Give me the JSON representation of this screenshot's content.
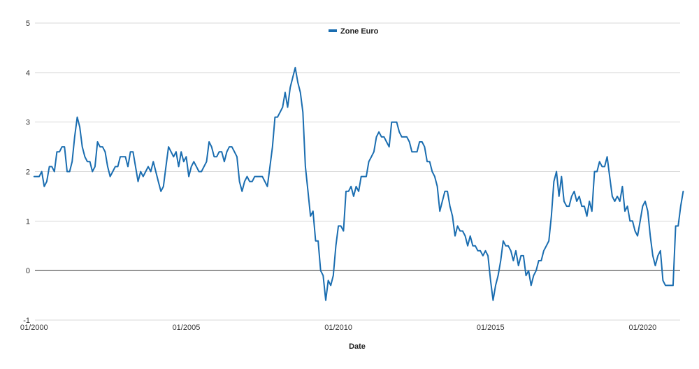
{
  "chart_data": {
    "type": "line",
    "xlabel": "Date",
    "ylabel": "",
    "ylim": [
      -1,
      5
    ],
    "y_ticks": [
      "-1",
      "0",
      "1",
      "2",
      "3",
      "4",
      "5"
    ],
    "x_ticks": [
      {
        "label": "01/2000",
        "year": 2000
      },
      {
        "label": "01/2005",
        "year": 2005
      },
      {
        "label": "01/2010",
        "year": 2010
      },
      {
        "label": "01/2015",
        "year": 2015
      },
      {
        "label": "01/2020",
        "year": 2020
      }
    ],
    "grid": true,
    "legend_position": "top-center",
    "series": [
      {
        "name": "Zone Euro",
        "color": "#1a6db0",
        "points": [
          [
            "01/2000",
            1.9
          ],
          [
            "03/2000",
            1.9
          ],
          [
            "04/2000",
            2.0
          ],
          [
            "05/2000",
            1.7
          ],
          [
            "06/2000",
            1.8
          ],
          [
            "07/2000",
            2.1
          ],
          [
            "08/2000",
            2.1
          ],
          [
            "09/2000",
            2.0
          ],
          [
            "10/2000",
            2.4
          ],
          [
            "11/2000",
            2.4
          ],
          [
            "12/2000",
            2.5
          ],
          [
            "01/2001",
            2.5
          ],
          [
            "02/2001",
            2.0
          ],
          [
            "03/2001",
            2.0
          ],
          [
            "04/2001",
            2.2
          ],
          [
            "05/2001",
            2.7
          ],
          [
            "06/2001",
            3.1
          ],
          [
            "07/2001",
            2.9
          ],
          [
            "08/2001",
            2.5
          ],
          [
            "09/2001",
            2.3
          ],
          [
            "10/2001",
            2.2
          ],
          [
            "11/2001",
            2.2
          ],
          [
            "12/2001",
            2.0
          ],
          [
            "01/2002",
            2.1
          ],
          [
            "02/2002",
            2.6
          ],
          [
            "03/2002",
            2.5
          ],
          [
            "04/2002",
            2.5
          ],
          [
            "05/2002",
            2.4
          ],
          [
            "06/2002",
            2.1
          ],
          [
            "07/2002",
            1.9
          ],
          [
            "08/2002",
            2.0
          ],
          [
            "09/2002",
            2.1
          ],
          [
            "10/2002",
            2.1
          ],
          [
            "11/2002",
            2.3
          ],
          [
            "12/2002",
            2.3
          ],
          [
            "01/2003",
            2.3
          ],
          [
            "02/2003",
            2.1
          ],
          [
            "03/2003",
            2.4
          ],
          [
            "04/2003",
            2.4
          ],
          [
            "05/2003",
            2.1
          ],
          [
            "06/2003",
            1.8
          ],
          [
            "07/2003",
            2.0
          ],
          [
            "08/2003",
            1.9
          ],
          [
            "09/2003",
            2.0
          ],
          [
            "10/2003",
            2.1
          ],
          [
            "11/2003",
            2.0
          ],
          [
            "12/2003",
            2.2
          ],
          [
            "01/2004",
            2.0
          ],
          [
            "02/2004",
            1.8
          ],
          [
            "03/2004",
            1.6
          ],
          [
            "04/2004",
            1.7
          ],
          [
            "05/2004",
            2.1
          ],
          [
            "06/2004",
            2.5
          ],
          [
            "07/2004",
            2.4
          ],
          [
            "08/2004",
            2.3
          ],
          [
            "09/2004",
            2.4
          ],
          [
            "10/2004",
            2.1
          ],
          [
            "11/2004",
            2.4
          ],
          [
            "12/2004",
            2.2
          ],
          [
            "01/2005",
            2.3
          ],
          [
            "02/2005",
            1.9
          ],
          [
            "03/2005",
            2.1
          ],
          [
            "04/2005",
            2.2
          ],
          [
            "05/2005",
            2.1
          ],
          [
            "06/2005",
            2.0
          ],
          [
            "07/2005",
            2.0
          ],
          [
            "08/2005",
            2.1
          ],
          [
            "09/2005",
            2.2
          ],
          [
            "10/2005",
            2.6
          ],
          [
            "11/2005",
            2.5
          ],
          [
            "12/2005",
            2.3
          ],
          [
            "01/2006",
            2.3
          ],
          [
            "02/2006",
            2.4
          ],
          [
            "03/2006",
            2.4
          ],
          [
            "04/2006",
            2.2
          ],
          [
            "05/2006",
            2.4
          ],
          [
            "06/2006",
            2.5
          ],
          [
            "07/2006",
            2.5
          ],
          [
            "08/2006",
            2.4
          ],
          [
            "09/2006",
            2.3
          ],
          [
            "10/2006",
            1.8
          ],
          [
            "11/2006",
            1.6
          ],
          [
            "12/2006",
            1.8
          ],
          [
            "01/2007",
            1.9
          ],
          [
            "02/2007",
            1.8
          ],
          [
            "03/2007",
            1.8
          ],
          [
            "04/2007",
            1.9
          ],
          [
            "05/2007",
            1.9
          ],
          [
            "06/2007",
            1.9
          ],
          [
            "07/2007",
            1.9
          ],
          [
            "08/2007",
            1.8
          ],
          [
            "09/2007",
            1.7
          ],
          [
            "10/2007",
            2.1
          ],
          [
            "11/2007",
            2.5
          ],
          [
            "12/2007",
            3.1
          ],
          [
            "01/2008",
            3.1
          ],
          [
            "02/2008",
            3.2
          ],
          [
            "03/2008",
            3.3
          ],
          [
            "04/2008",
            3.6
          ],
          [
            "05/2008",
            3.3
          ],
          [
            "06/2008",
            3.7
          ],
          [
            "07/2008",
            3.9
          ],
          [
            "08/2008",
            4.1
          ],
          [
            "09/2008",
            3.8
          ],
          [
            "10/2008",
            3.6
          ],
          [
            "11/2008",
            3.2
          ],
          [
            "12/2008",
            2.1
          ],
          [
            "01/2009",
            1.6
          ],
          [
            "02/2009",
            1.1
          ],
          [
            "03/2009",
            1.2
          ],
          [
            "04/2009",
            0.6
          ],
          [
            "05/2009",
            0.6
          ],
          [
            "06/2009",
            0.0
          ],
          [
            "07/2009",
            -0.1
          ],
          [
            "08/2009",
            -0.6
          ],
          [
            "09/2009",
            -0.2
          ],
          [
            "10/2009",
            -0.3
          ],
          [
            "11/2009",
            -0.1
          ],
          [
            "12/2009",
            0.5
          ],
          [
            "01/2010",
            0.9
          ],
          [
            "02/2010",
            0.9
          ],
          [
            "03/2010",
            0.8
          ],
          [
            "04/2010",
            1.6
          ],
          [
            "05/2010",
            1.6
          ],
          [
            "06/2010",
            1.7
          ],
          [
            "07/2010",
            1.5
          ],
          [
            "08/2010",
            1.7
          ],
          [
            "09/2010",
            1.6
          ],
          [
            "10/2010",
            1.9
          ],
          [
            "11/2010",
            1.9
          ],
          [
            "12/2010",
            1.9
          ],
          [
            "01/2011",
            2.2
          ],
          [
            "02/2011",
            2.3
          ],
          [
            "03/2011",
            2.4
          ],
          [
            "04/2011",
            2.7
          ],
          [
            "05/2011",
            2.8
          ],
          [
            "06/2011",
            2.7
          ],
          [
            "07/2011",
            2.7
          ],
          [
            "08/2011",
            2.6
          ],
          [
            "09/2011",
            2.5
          ],
          [
            "10/2011",
            3.0
          ],
          [
            "11/2011",
            3.0
          ],
          [
            "12/2011",
            3.0
          ],
          [
            "01/2012",
            2.8
          ],
          [
            "02/2012",
            2.7
          ],
          [
            "03/2012",
            2.7
          ],
          [
            "04/2012",
            2.7
          ],
          [
            "05/2012",
            2.6
          ],
          [
            "06/2012",
            2.4
          ],
          [
            "07/2012",
            2.4
          ],
          [
            "08/2012",
            2.4
          ],
          [
            "09/2012",
            2.6
          ],
          [
            "10/2012",
            2.6
          ],
          [
            "11/2012",
            2.5
          ],
          [
            "12/2012",
            2.2
          ],
          [
            "01/2013",
            2.2
          ],
          [
            "02/2013",
            2.0
          ],
          [
            "03/2013",
            1.9
          ],
          [
            "04/2013",
            1.7
          ],
          [
            "05/2013",
            1.2
          ],
          [
            "06/2013",
            1.4
          ],
          [
            "07/2013",
            1.6
          ],
          [
            "08/2013",
            1.6
          ],
          [
            "09/2013",
            1.3
          ],
          [
            "10/2013",
            1.1
          ],
          [
            "11/2013",
            0.7
          ],
          [
            "12/2013",
            0.9
          ],
          [
            "01/2014",
            0.8
          ],
          [
            "02/2014",
            0.8
          ],
          [
            "03/2014",
            0.7
          ],
          [
            "04/2014",
            0.5
          ],
          [
            "05/2014",
            0.7
          ],
          [
            "06/2014",
            0.5
          ],
          [
            "07/2014",
            0.5
          ],
          [
            "08/2014",
            0.4
          ],
          [
            "09/2014",
            0.4
          ],
          [
            "10/2014",
            0.3
          ],
          [
            "11/2014",
            0.4
          ],
          [
            "12/2014",
            0.3
          ],
          [
            "01/2015",
            -0.2
          ],
          [
            "02/2015",
            -0.6
          ],
          [
            "03/2015",
            -0.3
          ],
          [
            "04/2015",
            -0.1
          ],
          [
            "05/2015",
            0.2
          ],
          [
            "06/2015",
            0.6
          ],
          [
            "07/2015",
            0.5
          ],
          [
            "08/2015",
            0.5
          ],
          [
            "09/2015",
            0.4
          ],
          [
            "10/2015",
            0.2
          ],
          [
            "11/2015",
            0.4
          ],
          [
            "12/2015",
            0.1
          ],
          [
            "01/2016",
            0.3
          ],
          [
            "02/2016",
            0.3
          ],
          [
            "03/2016",
            -0.1
          ],
          [
            "04/2016",
            0.0
          ],
          [
            "05/2016",
            -0.3
          ],
          [
            "06/2016",
            -0.1
          ],
          [
            "07/2016",
            0.0
          ],
          [
            "08/2016",
            0.2
          ],
          [
            "09/2016",
            0.2
          ],
          [
            "10/2016",
            0.4
          ],
          [
            "11/2016",
            0.5
          ],
          [
            "12/2016",
            0.6
          ],
          [
            "01/2017",
            1.1
          ],
          [
            "02/2017",
            1.8
          ],
          [
            "03/2017",
            2.0
          ],
          [
            "04/2017",
            1.5
          ],
          [
            "05/2017",
            1.9
          ],
          [
            "06/2017",
            1.4
          ],
          [
            "07/2017",
            1.3
          ],
          [
            "08/2017",
            1.3
          ],
          [
            "09/2017",
            1.5
          ],
          [
            "10/2017",
            1.6
          ],
          [
            "11/2017",
            1.4
          ],
          [
            "12/2017",
            1.5
          ],
          [
            "01/2018",
            1.3
          ],
          [
            "02/2018",
            1.3
          ],
          [
            "03/2018",
            1.1
          ],
          [
            "04/2018",
            1.4
          ],
          [
            "05/2018",
            1.2
          ],
          [
            "06/2018",
            2.0
          ],
          [
            "07/2018",
            2.0
          ],
          [
            "08/2018",
            2.2
          ],
          [
            "09/2018",
            2.1
          ],
          [
            "10/2018",
            2.1
          ],
          [
            "11/2018",
            2.3
          ],
          [
            "12/2018",
            1.9
          ],
          [
            "01/2019",
            1.5
          ],
          [
            "02/2019",
            1.4
          ],
          [
            "03/2019",
            1.5
          ],
          [
            "04/2019",
            1.4
          ],
          [
            "05/2019",
            1.7
          ],
          [
            "06/2019",
            1.2
          ],
          [
            "07/2019",
            1.3
          ],
          [
            "08/2019",
            1.0
          ],
          [
            "09/2019",
            1.0
          ],
          [
            "10/2019",
            0.8
          ],
          [
            "11/2019",
            0.7
          ],
          [
            "12/2019",
            1.0
          ],
          [
            "01/2020",
            1.3
          ],
          [
            "02/2020",
            1.4
          ],
          [
            "03/2020",
            1.2
          ],
          [
            "04/2020",
            0.7
          ],
          [
            "05/2020",
            0.3
          ],
          [
            "06/2020",
            0.1
          ],
          [
            "07/2020",
            0.3
          ],
          [
            "08/2020",
            0.4
          ],
          [
            "09/2020",
            -0.2
          ],
          [
            "10/2020",
            -0.3
          ],
          [
            "11/2020",
            -0.3
          ],
          [
            "12/2020",
            -0.3
          ],
          [
            "01/2021",
            -0.3
          ],
          [
            "02/2021",
            0.9
          ],
          [
            "03/2021",
            0.9
          ],
          [
            "04/2021",
            1.3
          ],
          [
            "05/2021",
            1.6
          ]
        ]
      }
    ]
  }
}
